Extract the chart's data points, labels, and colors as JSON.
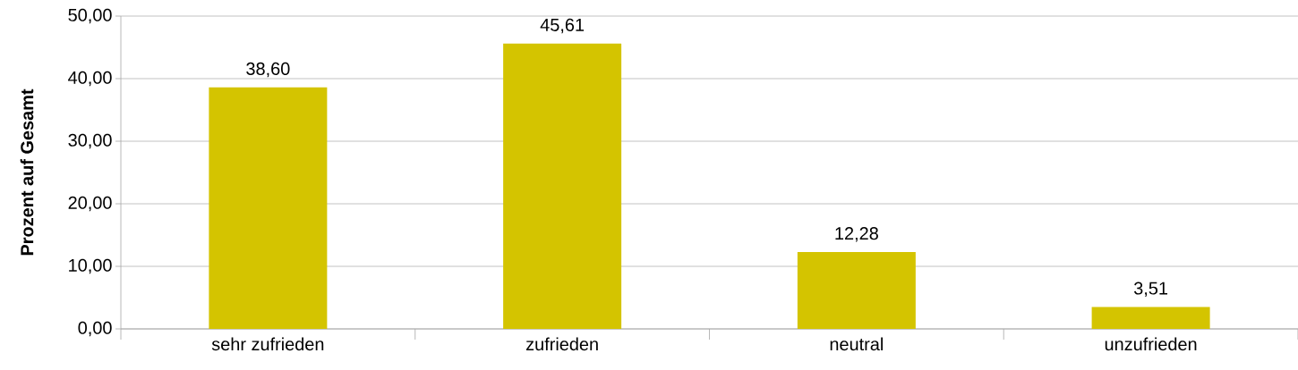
{
  "chart_data": {
    "type": "bar",
    "ylabel": "Prozent auf Gesamt",
    "categories": [
      "sehr zufrieden",
      "zufrieden",
      "neutral",
      "unzufrieden"
    ],
    "values": [
      38.6,
      45.61,
      12.28,
      3.51
    ],
    "value_labels": [
      "38,60",
      "45,61",
      "12,28",
      "3,51"
    ],
    "color": "#d4c400",
    "ylim": [
      0,
      50
    ],
    "yticks": [
      {
        "value": 0,
        "label": "0,00"
      },
      {
        "value": 10,
        "label": "10,00"
      },
      {
        "value": 20,
        "label": "20,00"
      },
      {
        "value": 30,
        "label": "30,00"
      },
      {
        "value": 40,
        "label": "40,00"
      },
      {
        "value": 50,
        "label": "50,00"
      }
    ],
    "grid": "y"
  }
}
